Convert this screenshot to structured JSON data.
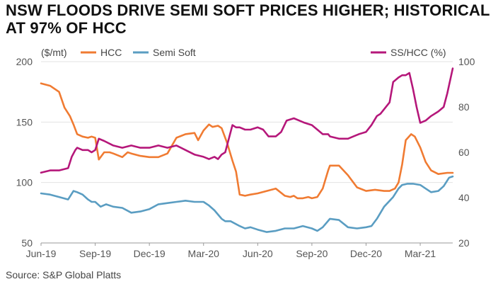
{
  "title": {
    "line1": "NSW FLOODS DRIVE SEMI SOFT PRICES HIGHER; HISTORICAL HIGH",
    "line2": "AT 97% OF HCC"
  },
  "source": "Source: S&P Global Platts",
  "chart_data": {
    "type": "line",
    "unit_label": "($/mt)",
    "right_axis_label": "SS/HCC (%)",
    "x_ticks": [
      "Jun-19",
      "Sep-19",
      "Dec-19",
      "Mar-20",
      "Jun-20",
      "Sep-20",
      "Dec-20",
      "Mar-21"
    ],
    "x_range": [
      0,
      22.8
    ],
    "y_left": {
      "range": [
        50,
        200
      ],
      "ticks": [
        50,
        100,
        150,
        200
      ]
    },
    "y_right": {
      "range": [
        20,
        100
      ],
      "ticks": [
        20,
        40,
        60,
        80,
        100
      ]
    },
    "legend": [
      {
        "name": "HCC",
        "color": "#f07b32"
      },
      {
        "name": "Semi Soft",
        "color": "#5a9dc2"
      },
      {
        "name": "SS/HCC (%)",
        "color": "#b5177a"
      }
    ],
    "series": [
      {
        "name": "HCC",
        "axis": "left",
        "color": "#f07b32",
        "x": [
          0,
          0.5,
          1.0,
          1.3,
          1.6,
          1.8,
          2.0,
          2.3,
          2.6,
          2.8,
          3.0,
          3.2,
          3.5,
          3.8,
          4.0,
          4.5,
          4.8,
          5.0,
          5.5,
          6.0,
          6.5,
          7.0,
          7.5,
          8.0,
          8.5,
          8.7,
          9.0,
          9.3,
          9.5,
          9.8,
          10.0,
          10.3,
          10.6,
          10.8,
          11.0,
          11.3,
          11.6,
          12.0,
          12.5,
          13.0,
          13.5,
          13.8,
          14.0,
          14.2,
          14.5,
          14.8,
          15.0,
          15.3,
          15.6,
          15.9,
          16.0,
          16.5,
          17.0,
          17.5,
          18.0,
          18.5,
          19.0,
          19.3,
          19.6,
          19.8,
          20.0,
          20.2,
          20.5,
          20.7,
          21.0,
          21.3,
          21.6,
          22.0,
          22.5,
          22.8
        ],
        "values": [
          182,
          180,
          175,
          162,
          155,
          148,
          140,
          138,
          137,
          138,
          137,
          119,
          125,
          125,
          124,
          121,
          125,
          124,
          122,
          121,
          121,
          124,
          137,
          140,
          141,
          135,
          143,
          148,
          146,
          147,
          145,
          133,
          118,
          109,
          90,
          89,
          90,
          91,
          93,
          95,
          89,
          88,
          89,
          87,
          87,
          88,
          87,
          88,
          95,
          110,
          114,
          114,
          106,
          96,
          93,
          94,
          93,
          93,
          95,
          100,
          115,
          135,
          140,
          138,
          129,
          117,
          110,
          107,
          108,
          108
        ]
      },
      {
        "name": "Semi Soft",
        "axis": "left",
        "color": "#5a9dc2",
        "x": [
          0,
          0.5,
          1.0,
          1.5,
          1.8,
          2.0,
          2.3,
          2.6,
          2.8,
          3.0,
          3.3,
          3.6,
          4.0,
          4.5,
          5.0,
          5.5,
          6.0,
          6.5,
          7.0,
          7.5,
          8.0,
          8.5,
          9.0,
          9.3,
          9.6,
          10.0,
          10.2,
          10.5,
          11.0,
          11.3,
          11.6,
          12.0,
          12.5,
          13.0,
          13.5,
          14.0,
          14.5,
          15.0,
          15.3,
          15.6,
          16.0,
          16.5,
          17.0,
          17.5,
          18.0,
          18.3,
          18.6,
          19.0,
          19.5,
          19.8,
          20.0,
          20.3,
          20.6,
          21.0,
          21.3,
          21.6,
          22.0,
          22.3,
          22.6,
          22.8
        ],
        "values": [
          91,
          90,
          88,
          86,
          93,
          92,
          90,
          86,
          84,
          84,
          80,
          82,
          80,
          79,
          75,
          76,
          78,
          82,
          83,
          84,
          85,
          84,
          84,
          81,
          77,
          70,
          68,
          68,
          64,
          62,
          63,
          61,
          59,
          60,
          62,
          62,
          64,
          62,
          60,
          63,
          70,
          69,
          63,
          62,
          63,
          64,
          70,
          80,
          88,
          95,
          98,
          99,
          99,
          98,
          95,
          92,
          93,
          97,
          104,
          105
        ]
      },
      {
        "name": "SS/HCC (%)",
        "axis": "right",
        "color": "#b5177a",
        "x": [
          0,
          0.5,
          1.0,
          1.5,
          1.7,
          1.9,
          2.0,
          2.3,
          2.6,
          2.8,
          3.0,
          3.2,
          3.5,
          4.0,
          4.5,
          5.0,
          5.5,
          6.0,
          6.5,
          7.0,
          7.5,
          8.0,
          8.5,
          9.0,
          9.3,
          9.6,
          9.8,
          10.0,
          10.2,
          10.4,
          10.6,
          10.8,
          11.0,
          11.3,
          11.6,
          12.0,
          12.3,
          12.6,
          13.0,
          13.3,
          13.6,
          14.0,
          14.3,
          14.6,
          15.0,
          15.3,
          15.6,
          15.9,
          16.0,
          16.5,
          17.0,
          17.3,
          17.6,
          18.0,
          18.3,
          18.6,
          18.8,
          19.0,
          19.3,
          19.5,
          19.8,
          20.0,
          20.2,
          20.4,
          20.6,
          20.8,
          21.0,
          21.3,
          21.6,
          22.0,
          22.3,
          22.5,
          22.8
        ],
        "values": [
          51,
          52,
          52,
          53,
          58,
          61,
          62,
          61,
          61,
          60,
          61,
          66,
          65,
          63,
          62,
          63,
          62,
          62,
          63,
          62,
          63,
          61,
          59,
          58,
          57,
          58,
          57,
          59,
          60,
          66,
          72,
          71,
          71,
          70,
          70,
          71,
          70,
          67,
          67,
          69,
          74,
          75,
          74,
          73,
          72,
          70,
          68,
          68,
          67,
          66,
          66,
          67,
          68,
          69,
          72,
          76,
          77,
          79,
          82,
          91,
          93,
          94,
          94,
          95,
          88,
          80,
          73,
          74,
          76,
          78,
          80,
          86,
          97
        ]
      }
    ]
  }
}
